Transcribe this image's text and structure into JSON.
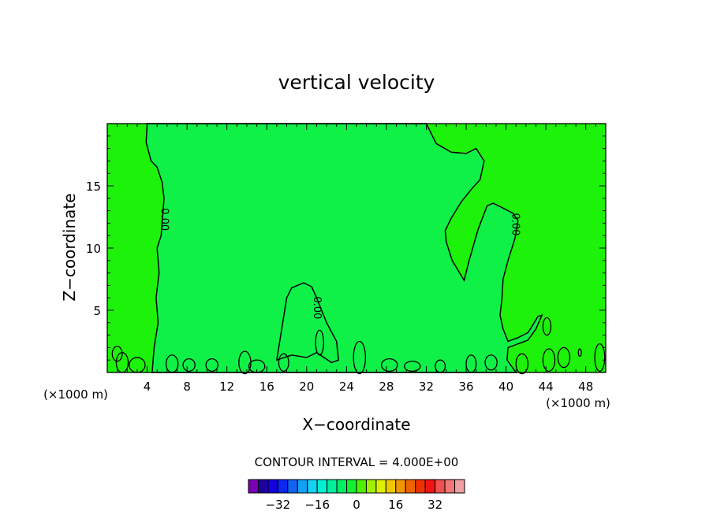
{
  "chart_data": {
    "type": "contour",
    "title": "vertical velocity",
    "xlabel": "X−coordinate",
    "ylabel": "Z−coordinate",
    "x_unit_left": "(×1000 m)",
    "x_unit_right": "(×1000 m)",
    "xlim": [
      0,
      50
    ],
    "ylim": [
      0,
      20
    ],
    "x_ticks": [
      4,
      8,
      12,
      16,
      20,
      24,
      28,
      32,
      36,
      40,
      44,
      48
    ],
    "y_ticks": [
      5,
      10,
      15
    ],
    "colors": {
      "background_field": "#1df20a",
      "positive_region": "#0ff146",
      "contour_line": "#000000"
    },
    "contour_labels": [
      {
        "text": "0.00",
        "x": 5.7,
        "y": 12.3
      },
      {
        "text": "0.00",
        "x": 21.0,
        "y": 5.2
      },
      {
        "text": "0.00",
        "x": 40.9,
        "y": 11.9
      }
    ],
    "contour_interval_text": "CONTOUR INTERVAL = 4.000E+00",
    "colorbar": {
      "colors": [
        "#7a00b4",
        "#1e00a0",
        "#1400dc",
        "#0a28f0",
        "#0f64f5",
        "#14a0f5",
        "#14d2f0",
        "#00f0d2",
        "#00f0a0",
        "#00f064",
        "#14f032",
        "#50f000",
        "#a0f000",
        "#dcf000",
        "#f0c800",
        "#f09600",
        "#f06400",
        "#f03200",
        "#f01414",
        "#f05050",
        "#f07878",
        "#f0a0a0"
      ],
      "tick_labels": [
        "−32",
        "−16",
        "0",
        "16",
        "32"
      ],
      "tick_values": [
        -32,
        -16,
        0,
        16,
        32
      ],
      "range": [
        -44,
        44
      ]
    }
  }
}
